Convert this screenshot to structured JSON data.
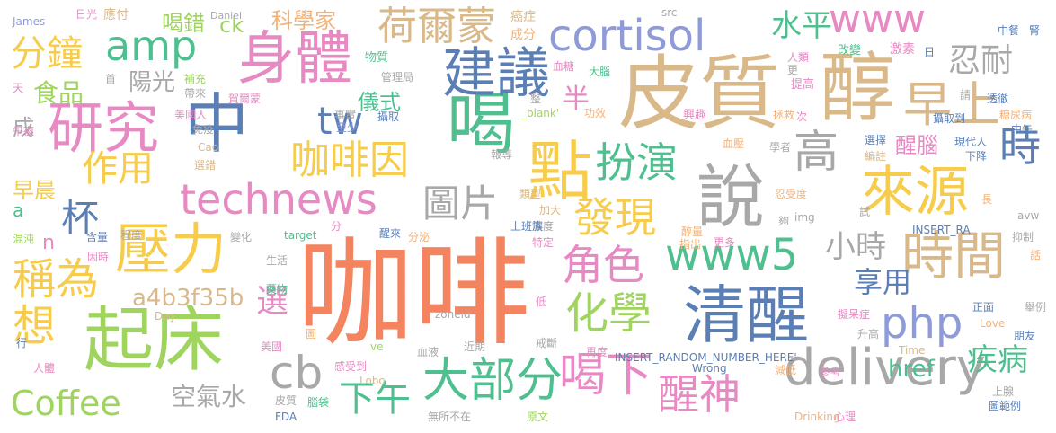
{
  "palette": {
    "orange": "#f4845f",
    "tan": "#d9b98a",
    "blue": "#5b7fb5",
    "purple": "#8e9bd8",
    "green": "#4fbf8f",
    "lime": "#9fd45f",
    "yellow": "#f6cc4a",
    "gray": "#a8a8a8",
    "pink": "#e78ac3",
    "peach": "#f2b27a"
  },
  "words": [
    {
      "text": "咖啡",
      "color": "orange"
    },
    {
      "text": "皮質",
      "color": "tan"
    },
    {
      "text": "醇",
      "color": "tan"
    },
    {
      "text": "起床",
      "color": "lime"
    },
    {
      "text": "清醒",
      "color": "blue"
    },
    {
      "text": "喝",
      "color": "green"
    },
    {
      "text": "說",
      "color": "gray"
    },
    {
      "text": "中",
      "color": "blue"
    },
    {
      "text": "身體",
      "color": "pink"
    },
    {
      "text": "點",
      "color": "yellow"
    },
    {
      "text": "建議",
      "color": "blue"
    },
    {
      "text": "研究",
      "color": "pink"
    },
    {
      "text": "壓力",
      "color": "yellow"
    },
    {
      "text": "來源",
      "color": "yellow"
    },
    {
      "text": "時間",
      "color": "tan"
    },
    {
      "text": "早上",
      "color": "tan"
    },
    {
      "text": "technews",
      "color": "pink"
    },
    {
      "text": "cortisol",
      "color": "purple"
    },
    {
      "text": "大部分",
      "color": "green"
    },
    {
      "text": "喝下",
      "color": "pink"
    },
    {
      "text": "delivery",
      "color": "gray"
    },
    {
      "text": "www5",
      "color": "green"
    },
    {
      "text": "化學",
      "color": "lime"
    },
    {
      "text": "發現",
      "color": "yellow"
    },
    {
      "text": "角色",
      "color": "pink"
    },
    {
      "text": "稱為",
      "color": "yellow"
    },
    {
      "text": "想",
      "color": "yellow"
    },
    {
      "text": "cb",
      "color": "gray"
    },
    {
      "text": "Coffee",
      "color": "lime"
    },
    {
      "text": "醒神",
      "color": "pink"
    },
    {
      "text": "php",
      "color": "purple"
    },
    {
      "text": "扮演",
      "color": "green"
    },
    {
      "text": "咖啡因",
      "color": "yellow"
    },
    {
      "text": "荷爾蒙",
      "color": "tan"
    },
    {
      "text": "www",
      "color": "pink"
    },
    {
      "text": "amp",
      "color": "green"
    },
    {
      "text": "分鐘",
      "color": "yellow"
    },
    {
      "text": "作用",
      "color": "yellow"
    },
    {
      "text": "高",
      "color": "gray"
    },
    {
      "text": "時",
      "color": "blue"
    },
    {
      "text": "下午",
      "color": "green"
    },
    {
      "text": "tw",
      "color": "blue"
    },
    {
      "text": "圖片",
      "color": "gray"
    },
    {
      "text": "杯",
      "color": "blue"
    },
    {
      "text": "水平",
      "color": "green"
    },
    {
      "text": "忍耐",
      "color": "gray"
    },
    {
      "text": "小時",
      "color": "gray"
    },
    {
      "text": "享用",
      "color": "blue"
    },
    {
      "text": "疾病",
      "color": "green"
    },
    {
      "text": "選",
      "color": "pink"
    },
    {
      "text": "a4b3f35b",
      "color": "tan"
    },
    {
      "text": "空氣水",
      "color": "gray"
    },
    {
      "text": "href",
      "color": "green"
    },
    {
      "text": "食品",
      "color": "lime"
    },
    {
      "text": "陽光",
      "color": "gray"
    },
    {
      "text": "科學家",
      "color": "peach"
    },
    {
      "text": "喝錯",
      "color": "lime"
    },
    {
      "text": "ck",
      "color": "lime"
    },
    {
      "text": "儀式",
      "color": "green"
    },
    {
      "text": "半",
      "color": "pink"
    },
    {
      "text": "醒腦",
      "color": "pink"
    },
    {
      "text": "早晨",
      "color": "yellow"
    },
    {
      "text": "成",
      "color": "gray"
    },
    {
      "text": "a",
      "color": "green"
    },
    {
      "text": "n",
      "color": "pink"
    },
    {
      "text": "日光",
      "color": "pink"
    },
    {
      "text": "應付",
      "color": "tan"
    },
    {
      "text": "Daniel",
      "color": "gray"
    },
    {
      "text": "James",
      "color": "purple"
    },
    {
      "text": "src",
      "color": "gray"
    },
    {
      "text": "癌症",
      "color": "tan"
    },
    {
      "text": "成分",
      "color": "peach"
    },
    {
      "text": "物質",
      "color": "green"
    },
    {
      "text": "血糖",
      "color": "pink"
    },
    {
      "text": "大腦",
      "color": "green"
    },
    {
      "text": "改變",
      "color": "green"
    },
    {
      "text": "激素",
      "color": "pink"
    },
    {
      "text": "中餐",
      "color": "blue"
    },
    {
      "text": "腎",
      "color": "blue"
    },
    {
      "text": "日",
      "color": "blue"
    },
    {
      "text": "人類",
      "color": "pink"
    },
    {
      "text": "更",
      "color": "gray"
    },
    {
      "text": "提高",
      "color": "pink"
    },
    {
      "text": "請",
      "color": "gray"
    },
    {
      "text": "透徹",
      "color": "blue"
    },
    {
      "text": "糖尿病",
      "color": "peach"
    },
    {
      "text": "中午",
      "color": "blue"
    },
    {
      "text": "天",
      "color": "pink"
    },
    {
      "text": "首",
      "color": "gray"
    },
    {
      "text": "補充",
      "color": "lime"
    },
    {
      "text": "帶來",
      "color": "gray"
    },
    {
      "text": "賀爾蒙",
      "color": "pink"
    },
    {
      "text": "管理局",
      "color": "gray"
    },
    {
      "text": "美國人",
      "color": "pink"
    },
    {
      "text": "事實",
      "color": "gray"
    },
    {
      "text": "免疫",
      "color": "gray"
    },
    {
      "text": "攝取",
      "color": "blue"
    },
    {
      "text": "至少",
      "color": "purple"
    },
    {
      "text": "整",
      "color": "gray"
    },
    {
      "text": "_blank'",
      "color": "lime"
    },
    {
      "text": "功效",
      "color": "peach"
    },
    {
      "text": "興趣",
      "color": "pink"
    },
    {
      "text": "拯救",
      "color": "peach"
    },
    {
      "text": "次",
      "color": "pink"
    },
    {
      "text": "攝取到",
      "color": "blue"
    },
    {
      "text": "午夜",
      "color": "pink"
    },
    {
      "text": "Cao",
      "color": "tan"
    },
    {
      "text": "選錯",
      "color": "tan"
    },
    {
      "text": "報導",
      "color": "gray"
    },
    {
      "text": "類型",
      "color": "tan"
    },
    {
      "text": "血壓",
      "color": "peach"
    },
    {
      "text": "學者",
      "color": "gray"
    },
    {
      "text": "選擇",
      "color": "blue"
    },
    {
      "text": "編註",
      "color": "tan"
    },
    {
      "text": "現代人",
      "color": "blue"
    },
    {
      "text": "下降",
      "color": "blue"
    },
    {
      "text": "加大",
      "color": "tan"
    },
    {
      "text": "忍受度",
      "color": "peach"
    },
    {
      "text": "濃度",
      "color": "gray"
    },
    {
      "text": "上班族",
      "color": "blue"
    },
    {
      "text": "長",
      "color": "peach"
    },
    {
      "text": "含量",
      "color": "blue"
    },
    {
      "text": "程度",
      "color": "gray"
    },
    {
      "text": "混沌",
      "color": "lime"
    },
    {
      "text": "變化",
      "color": "gray"
    },
    {
      "text": "target",
      "color": "green"
    },
    {
      "text": "分",
      "color": "pink"
    },
    {
      "text": "醒來",
      "color": "blue"
    },
    {
      "text": "分泌",
      "color": "peach"
    },
    {
      "text": "特定",
      "color": "pink"
    },
    {
      "text": "醇量",
      "color": "peach"
    },
    {
      "text": "試",
      "color": "gray"
    },
    {
      "text": "img",
      "color": "gray"
    },
    {
      "text": "夠",
      "color": "gray"
    },
    {
      "text": "INSERT_RA",
      "color": "blue"
    },
    {
      "text": "avw",
      "color": "gray"
    },
    {
      "text": "抑制",
      "color": "gray"
    },
    {
      "text": "因時",
      "color": "pink"
    },
    {
      "text": "生活",
      "color": "gray"
    },
    {
      "text": "藥物",
      "color": "green"
    },
    {
      "text": "指出",
      "color": "peach"
    },
    {
      "text": "更多",
      "color": "pink"
    },
    {
      "text": "話",
      "color": "peach"
    },
    {
      "text": "正面",
      "color": "blue"
    },
    {
      "text": "低",
      "color": "pink"
    },
    {
      "text": "zoneid",
      "color": "gray"
    },
    {
      "text": "Day",
      "color": "tan"
    },
    {
      "text": "舉例",
      "color": "gray"
    },
    {
      "text": "Love",
      "color": "peach"
    },
    {
      "text": "擬呆症",
      "color": "pink"
    },
    {
      "text": "行",
      "color": "blue"
    },
    {
      "text": "美國",
      "color": "pink"
    },
    {
      "text": "圖",
      "color": "peach"
    },
    {
      "text": "ve",
      "color": "lime"
    },
    {
      "text": "近期",
      "color": "gray"
    },
    {
      "text": "戒斷",
      "color": "gray"
    },
    {
      "text": "升高",
      "color": "gray"
    },
    {
      "text": "朋友",
      "color": "blue"
    },
    {
      "text": "人體",
      "color": "pink"
    },
    {
      "text": "感受到",
      "color": "pink"
    },
    {
      "text": "血液",
      "color": "gray"
    },
    {
      "text": "再度",
      "color": "pink"
    },
    {
      "text": "INSERT_RANDOM_NUMBER_HERE'",
      "color": "blue"
    },
    {
      "text": "Wrong",
      "color": "blue"
    },
    {
      "text": "減低",
      "color": "peach"
    },
    {
      "text": "參考",
      "color": "pink"
    },
    {
      "text": "Time",
      "color": "tan"
    },
    {
      "text": "上腺",
      "color": "gray"
    },
    {
      "text": "Lobo",
      "color": "tan"
    },
    {
      "text": "皮質",
      "color": "gray"
    },
    {
      "text": "腦袋",
      "color": "green"
    },
    {
      "text": "FDA",
      "color": "blue"
    },
    {
      "text": "無所不在",
      "color": "gray"
    },
    {
      "text": "原文",
      "color": "lime"
    },
    {
      "text": "Drinking",
      "color": "peach"
    },
    {
      "text": "心理",
      "color": "pink"
    },
    {
      "text": "圖範例",
      "color": "blue"
    }
  ]
}
